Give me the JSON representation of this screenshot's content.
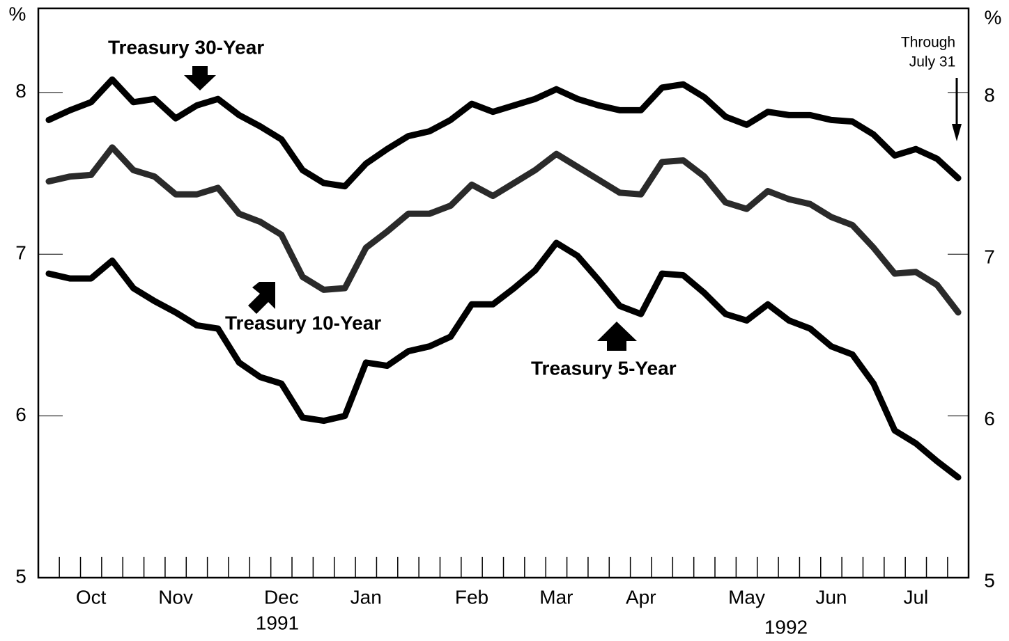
{
  "chart_data": {
    "type": "line",
    "categories": [
      null,
      null,
      "Oct",
      null,
      null,
      null,
      "Nov",
      null,
      null,
      null,
      null,
      "Dec",
      null,
      null,
      null,
      "Jan",
      null,
      null,
      null,
      null,
      "Feb",
      null,
      null,
      null,
      "Mar",
      null,
      null,
      null,
      "Apr",
      null,
      null,
      null,
      null,
      "May",
      null,
      null,
      null,
      "Jun",
      null,
      null,
      null,
      "Jul",
      null,
      null
    ],
    "year_labels": [
      "1991",
      "1992"
    ],
    "y_label": "%",
    "y2_label": "%",
    "series": [
      {
        "name": "Treasury 30-Year",
        "color": "#000000",
        "values": [
          7.83,
          7.89,
          7.94,
          8.08,
          7.94,
          7.96,
          7.84,
          7.92,
          7.96,
          7.86,
          7.79,
          7.71,
          7.52,
          7.44,
          7.42,
          7.56,
          7.65,
          7.73,
          7.76,
          7.83,
          7.93,
          7.88,
          7.92,
          7.96,
          8.02,
          7.96,
          7.92,
          7.89,
          7.89,
          8.03,
          8.05,
          7.97,
          7.85,
          7.8,
          7.88,
          7.86,
          7.86,
          7.83,
          7.82,
          7.74,
          7.61,
          7.65,
          7.59,
          7.47
        ]
      },
      {
        "name": "Treasury 10-Year",
        "color": "#2a2a2a",
        "values": [
          7.45,
          7.48,
          7.49,
          7.66,
          7.52,
          7.48,
          7.37,
          7.37,
          7.41,
          7.25,
          7.2,
          7.12,
          6.86,
          6.78,
          6.79,
          7.04,
          7.14,
          7.25,
          7.25,
          7.3,
          7.43,
          7.36,
          7.44,
          7.52,
          7.62,
          7.54,
          7.46,
          7.38,
          7.37,
          7.57,
          7.58,
          7.48,
          7.32,
          7.28,
          7.39,
          7.34,
          7.31,
          7.23,
          7.18,
          7.04,
          6.88,
          6.89,
          6.81,
          6.64
        ]
      },
      {
        "name": "Treasury 5-Year",
        "color": "#000000",
        "values": [
          6.88,
          6.85,
          6.85,
          6.96,
          6.79,
          6.71,
          6.64,
          6.56,
          6.54,
          6.33,
          6.24,
          6.2,
          5.99,
          5.97,
          6.0,
          6.33,
          6.31,
          6.4,
          6.43,
          6.49,
          6.69,
          6.69,
          6.79,
          6.9,
          7.07,
          6.99,
          6.84,
          6.68,
          6.63,
          6.88,
          6.87,
          6.76,
          6.63,
          6.59,
          6.69,
          6.59,
          6.54,
          6.43,
          6.38,
          6.2,
          5.91,
          5.83,
          5.72,
          5.62
        ]
      }
    ],
    "annotation": [
      "Through",
      "July 31"
    ],
    "ylim": [
      5,
      8.52
    ],
    "yticks": [
      5,
      6,
      7,
      8
    ],
    "y2lim": [
      5,
      8.52
    ],
    "y2ticks": [
      5,
      6,
      7,
      8
    ],
    "grid": false
  }
}
